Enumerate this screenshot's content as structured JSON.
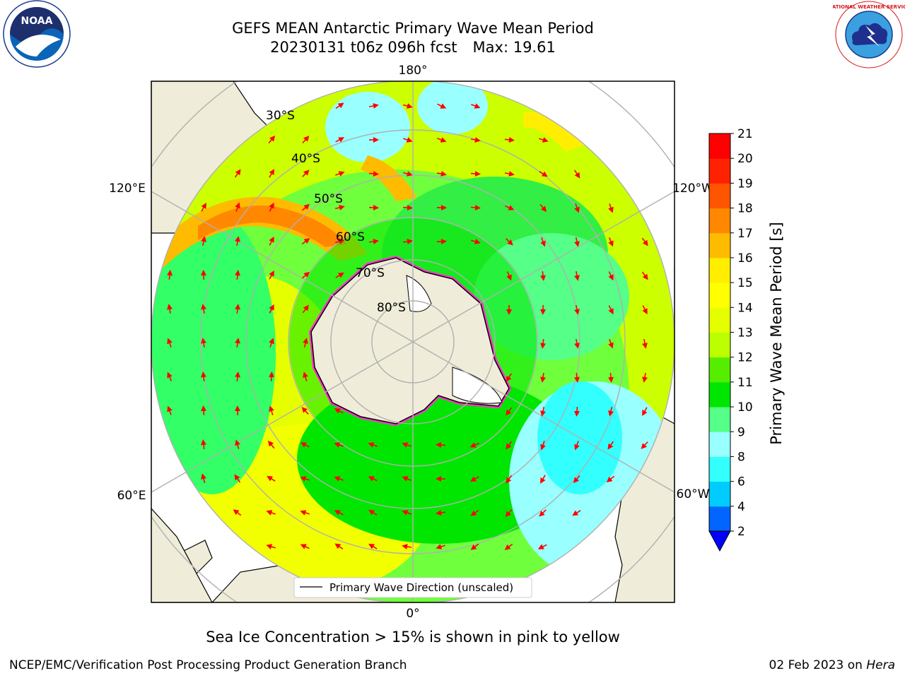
{
  "title": {
    "line1": "GEFS MEAN Antarctic Primary Wave Mean Period",
    "date_run": "20230131 t06z 096h fcst",
    "max_label": "Max: 19.61"
  },
  "logos": {
    "left": "noaa-logo",
    "right": "national-weather-service-logo",
    "left_text": "NOAA",
    "right_text": "NATIONAL WEATHER SERVICE"
  },
  "map": {
    "projection": "south-polar-stereographic",
    "longitude_labels": {
      "top": "180°",
      "bottom": "0°",
      "upper_left": "120°E",
      "upper_right": "120°W",
      "lower_left": "60°E",
      "lower_right": "60°W"
    },
    "latitude_labels": [
      "30°S",
      "40°S",
      "50°S",
      "60°S",
      "70°S",
      "80°S"
    ],
    "legend_label": "Primary Wave Direction (unscaled)",
    "arrow_color": "#ff0000",
    "land_color": "#efedd9",
    "sea_ice_colors": [
      "#ff33cc",
      "#ffffff",
      "#ffff00"
    ]
  },
  "colorbar": {
    "label": "Primary Wave Mean Period [s]",
    "ticks": [
      "2",
      "4",
      "6",
      "8",
      "9",
      "10",
      "11",
      "12",
      "13",
      "14",
      "15",
      "16",
      "17",
      "18",
      "19",
      "20",
      "21"
    ],
    "colors": [
      "#0066ff",
      "#00ccff",
      "#33ffff",
      "#99ffff",
      "#55ff88",
      "#00e600",
      "#55ee00",
      "#bbff00",
      "#e6ff00",
      "#ffff00",
      "#ffee00",
      "#ffbb00",
      "#ff8800",
      "#ff5500",
      "#ff2200",
      "#ff0000"
    ],
    "under_color": "#0000ff"
  },
  "caption": "Sea Ice Concentration > 15% is shown in pink to yellow",
  "footer": {
    "left": "NCEP/EMC/Verification Post Processing Product Generation Branch",
    "right_prefix": "02 Feb 2023 on ",
    "right_host": "Hera"
  }
}
